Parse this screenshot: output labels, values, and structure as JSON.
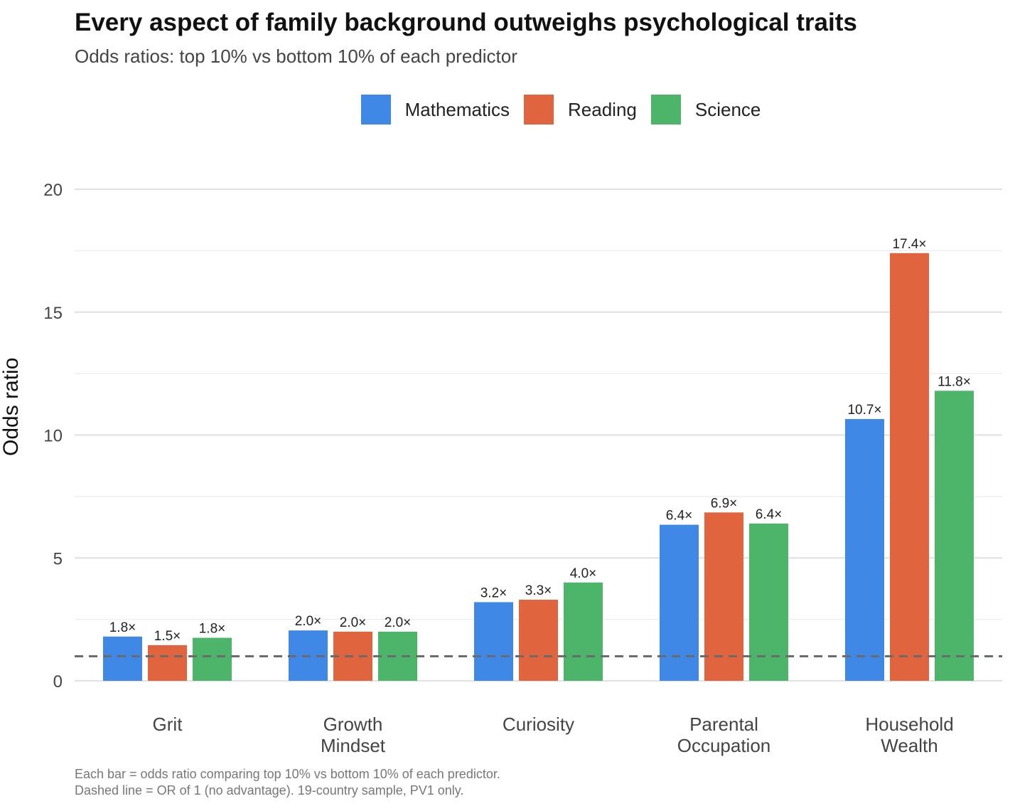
{
  "title": "Every aspect of family background outweighs psychological traits",
  "subtitle": "Odds ratios: top 10% vs bottom 10% of each predictor",
  "caption": {
    "line1": "Each bar = odds ratio comparing top 10% vs bottom 10% of each predictor.",
    "line2": "Dashed line = OR of 1 (no advantage). 19-country sample, PV1 only."
  },
  "chart_data": {
    "type": "bar",
    "title": "Every aspect of family background outweighs psychological traits",
    "subtitle": "Odds ratios: top 10% vs bottom 10% of each predictor",
    "xlabel": "",
    "ylabel": "Odds ratio",
    "ylim": [
      0,
      20
    ],
    "yticks": [
      0,
      5,
      10,
      15,
      20
    ],
    "grid": true,
    "legend_position": "top",
    "reference_line": 1,
    "categories": [
      [
        "Grit"
      ],
      [
        "Growth",
        "Mindset"
      ],
      [
        "Curiosity"
      ],
      [
        "Parental",
        "Occupation"
      ],
      [
        "Household",
        "Wealth"
      ]
    ],
    "series": [
      {
        "name": "Mathematics",
        "color": "#3F88E5",
        "values": [
          1.8,
          2.05,
          3.2,
          6.35,
          10.65
        ],
        "labels": [
          "1.8×",
          "2.0×",
          "3.2×",
          "6.4×",
          "10.7×"
        ]
      },
      {
        "name": "Reading",
        "color": "#E0643E",
        "values": [
          1.45,
          2.0,
          3.3,
          6.85,
          17.4
        ],
        "labels": [
          "1.5×",
          "2.0×",
          "3.3×",
          "6.9×",
          "17.4×"
        ]
      },
      {
        "name": "Science",
        "color": "#4DB56A",
        "values": [
          1.75,
          2.0,
          4.0,
          6.4,
          11.8
        ],
        "labels": [
          "1.8×",
          "2.0×",
          "4.0×",
          "6.4×",
          "11.8×"
        ]
      }
    ]
  }
}
